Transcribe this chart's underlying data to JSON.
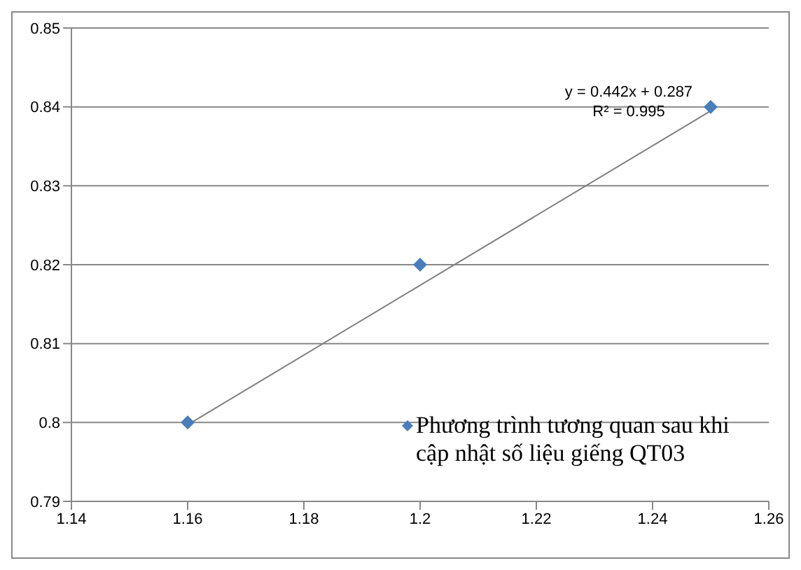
{
  "chart_data": {
    "type": "scatter",
    "xlim": [
      1.14,
      1.26
    ],
    "xticks": [
      1.14,
      1.16,
      1.18,
      1.2,
      1.22,
      1.24,
      1.26
    ],
    "ylim": [
      0.79,
      0.85
    ],
    "yticks": [
      0.79,
      0.8,
      0.81,
      0.82,
      0.83,
      0.84,
      0.85
    ],
    "grid": "y",
    "legend": "bottom right",
    "marker": "diamond",
    "series": [
      {
        "name": "Phương trình tương quan sau khi cập nhật số liệu giếng QT03",
        "color": "#4a7ebb",
        "x": [
          1.16,
          1.2,
          1.25
        ],
        "values": [
          0.8,
          0.82,
          0.84
        ]
      },
      {
        "type": "line",
        "marker": "none",
        "color": "#808080",
        "x": [
          1.16,
          1.25
        ],
        "values": [
          0.7997,
          0.8395
        ]
      }
    ],
    "annotations": [
      "y = 0.442x + 0.287",
      "R² = 0.995"
    ]
  }
}
